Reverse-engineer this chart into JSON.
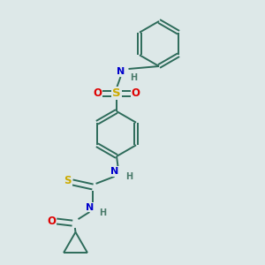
{
  "bg_color": "#dde8e8",
  "bond_color": "#2d6b5a",
  "N_color": "#0000cc",
  "O_color": "#dd0000",
  "S_color": "#ccaa00",
  "H_color": "#4a7a6a",
  "line_width": 1.4,
  "fig_w": 3.0,
  "fig_h": 3.0,
  "dpi": 100,
  "xlim": [
    0,
    1
  ],
  "ylim": [
    0,
    1
  ]
}
